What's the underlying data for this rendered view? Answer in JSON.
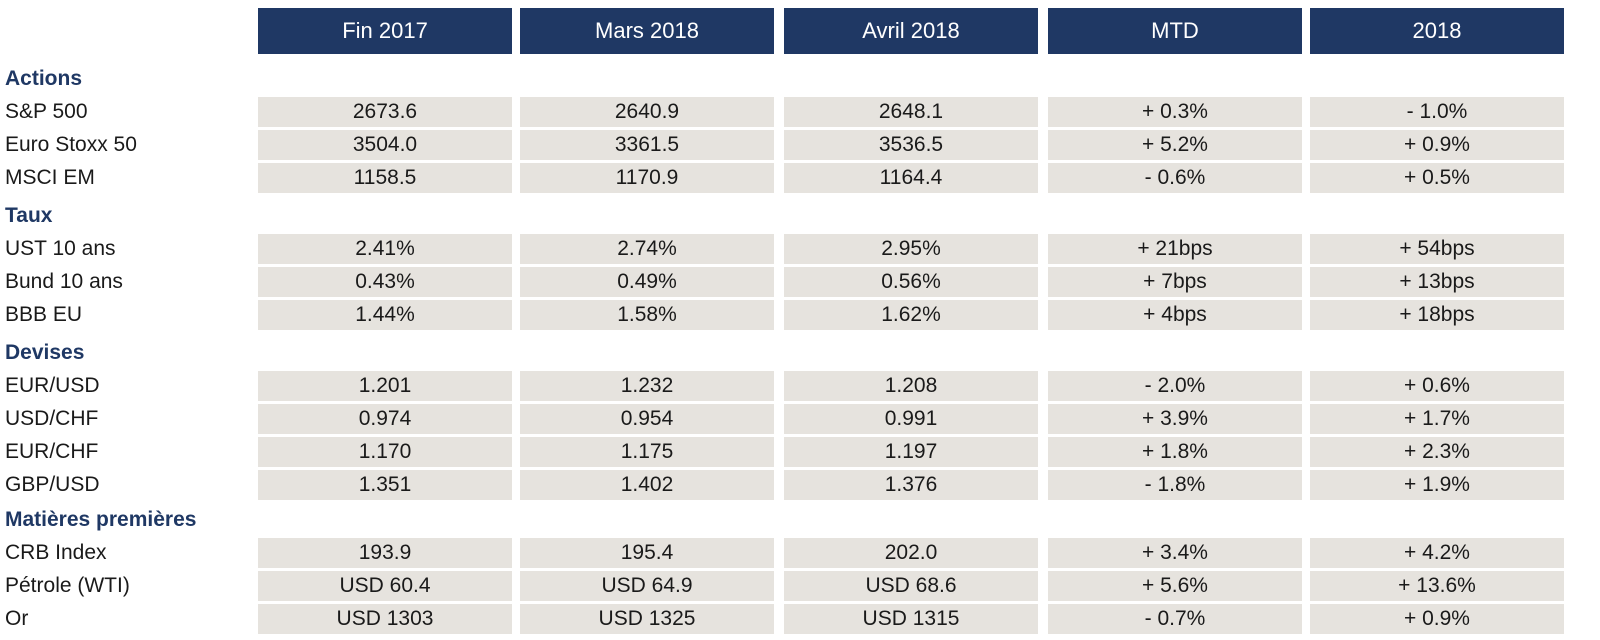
{
  "columns": [
    "Fin 2017",
    "Mars 2018",
    "Avril 2018",
    "MTD",
    "2018"
  ],
  "sections": [
    {
      "title": "Actions",
      "rows": [
        {
          "label": "S&P 500",
          "values": [
            "2673.6",
            "2640.9",
            "2648.1",
            "+ 0.3%",
            "- 1.0%"
          ]
        },
        {
          "label": "Euro Stoxx 50",
          "values": [
            "3504.0",
            "3361.5",
            "3536.5",
            "+ 5.2%",
            "+ 0.9%"
          ]
        },
        {
          "label": "MSCI EM",
          "values": [
            "1158.5",
            "1170.9",
            "1164.4",
            "- 0.6%",
            "+ 0.5%"
          ]
        }
      ]
    },
    {
      "title": "Taux",
      "rows": [
        {
          "label": "UST 10 ans",
          "values": [
            "2.41%",
            "2.74%",
            "2.95%",
            "+ 21bps",
            "+ 54bps"
          ]
        },
        {
          "label": "Bund 10 ans",
          "values": [
            "0.43%",
            "0.49%",
            "0.56%",
            "+ 7bps",
            "+ 13bps"
          ]
        },
        {
          "label": "BBB EU",
          "values": [
            "1.44%",
            "1.58%",
            "1.62%",
            "+ 4bps",
            "+ 18bps"
          ]
        }
      ]
    },
    {
      "title": "Devises",
      "rows": [
        {
          "label": "EUR/USD",
          "values": [
            "1.201",
            "1.232",
            "1.208",
            "- 2.0%",
            "+ 0.6%"
          ]
        },
        {
          "label": "USD/CHF",
          "values": [
            "0.974",
            "0.954",
            "0.991",
            "+ 3.9%",
            "+ 1.7%"
          ]
        },
        {
          "label": "EUR/CHF",
          "values": [
            "1.170",
            "1.175",
            "1.197",
            "+ 1.8%",
            "+ 2.3%"
          ]
        },
        {
          "label": "GBP/USD",
          "values": [
            "1.351",
            "1.402",
            "1.376",
            "- 1.8%",
            "+ 1.9%"
          ]
        }
      ]
    },
    {
      "title": "Matières premières",
      "rows": [
        {
          "label": "CRB Index",
          "values": [
            "193.9",
            "195.4",
            "202.0",
            "+ 3.4%",
            "+ 4.2%"
          ]
        },
        {
          "label": "Pétrole (WTI)",
          "values": [
            "USD 60.4",
            "USD 64.9",
            "USD 68.6",
            "+ 5.6%",
            "+ 13.6%"
          ]
        },
        {
          "label": "Or",
          "values": [
            "USD 1303",
            "USD 1325",
            "USD 1315",
            "- 0.7%",
            "+ 0.9%"
          ]
        }
      ]
    }
  ]
}
